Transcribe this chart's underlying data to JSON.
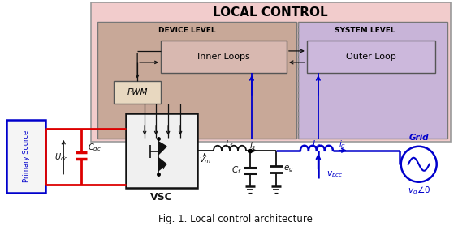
{
  "title": "Fig. 1. Local control architecture",
  "local_control_label": "LOCAL CONTROL",
  "device_level_label": "DEVICE LEVEL",
  "system_level_label": "SYSTEM LEVEL",
  "inner_loops_label": "Inner Loops",
  "outer_loop_label": "Outer Loop",
  "pwm_label": "PWM",
  "vsc_label": "VSC",
  "primary_source_label": "Primary Source",
  "grid_label": "Grid",
  "bg_color": "#ffffff",
  "local_ctrl_fc": "#f2cccc",
  "device_fc": "#c8a898",
  "system_fc": "#c8b4d8",
  "inner_fc": "#d8b8b0",
  "outer_fc": "#ccb8dc",
  "pwm_fc": "#e8d8c0",
  "red": "#dd0000",
  "blue": "#0000cc",
  "black": "#111111"
}
